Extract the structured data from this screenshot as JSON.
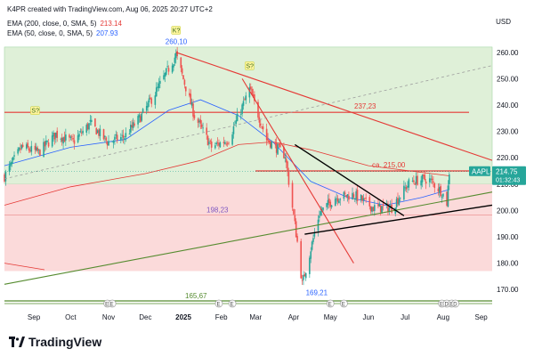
{
  "header": {
    "created_line": "K4PR created with TradingView.com, Aug 06, 2025 20:27 UTC+2",
    "ema200": {
      "label": "EMA (200, close, 0, SMA, 5)",
      "value": "213.14",
      "color": "#e53935"
    },
    "ema50": {
      "label": "EMA (50, close, 0, SMA, 5)",
      "value": "207.93",
      "color": "#2962ff"
    }
  },
  "currency": "USD",
  "brand": "TradingView",
  "colors": {
    "up": "#26a69a",
    "down": "#ef5350",
    "green_zone": "#dff0d8",
    "red_zone": "#fbdada",
    "trend_red": "#e53935",
    "trend_green": "#558b2f",
    "trend_black": "#000000",
    "ema200": "#e53935",
    "ema50": "#2962ff",
    "price_tag": "#26a69a"
  },
  "chart_data": {
    "type": "candlestick",
    "symbol": "AAPL",
    "last_price": "214.75",
    "countdown": "01:32:43",
    "ylim": [
      165,
      265
    ],
    "y_ticks": [
      "260.00",
      "250.00",
      "240.00",
      "230.00",
      "220.00",
      "210.00",
      "200.00",
      "190.00",
      "180.00",
      "170.00"
    ],
    "x_ticks": [
      "Sep",
      "Oct",
      "Nov",
      "Dec",
      "2025",
      "Feb",
      "Mar",
      "Apr",
      "May",
      "Jun",
      "Jul",
      "Aug",
      "Sep"
    ],
    "x_range": [
      "2024-08-08",
      "2025-09-10"
    ],
    "zones": [
      {
        "name": "green",
        "from": 210,
        "to": 262
      },
      {
        "name": "red",
        "from": 177,
        "to": 210
      }
    ],
    "levels": [
      {
        "value": 237.23,
        "label": "237,23",
        "color": "#e53935"
      },
      {
        "value": 215.0,
        "label": "ca. 215,00",
        "color": "#e53935"
      },
      {
        "value": 198.23,
        "label": "198,23",
        "color": "#7e57c2"
      },
      {
        "value": 165.67,
        "label": "165,67",
        "color": "#558b2f"
      }
    ],
    "annotations": [
      {
        "text": "260,10",
        "date": "2024-12-26",
        "value": 260.1
      },
      {
        "text": "169,21",
        "date": "2025-04-08",
        "value": 169.21
      },
      {
        "text": "K?",
        "date": "2024-12-26",
        "value": 260.1
      },
      {
        "text": "S?",
        "date": "2024-09-02",
        "value": 233
      },
      {
        "text": "S?",
        "date": "2025-02-24",
        "value": 250
      }
    ],
    "trendlines": [
      {
        "color": "#e53935",
        "from": [
          "2024-12-26",
          260
        ],
        "to": [
          "2025-09-10",
          219
        ]
      },
      {
        "color": "#e53935",
        "from": [
          "2025-02-18",
          250
        ],
        "to": [
          "2025-05-20",
          180
        ]
      },
      {
        "color": "#558b2f",
        "from": [
          "2024-08-08",
          172
        ],
        "to": [
          "2025-09-10",
          207
        ]
      },
      {
        "color": "#000000",
        "from": [
          "2025-04-02",
          225
        ],
        "to": [
          "2025-06-30",
          198
        ]
      },
      {
        "color": "#000000",
        "from": [
          "2025-04-10",
          191
        ],
        "to": [
          "2025-09-10",
          202
        ]
      },
      {
        "color": "#9e9e9e",
        "dashed": true,
        "from": [
          "2024-08-08",
          212
        ],
        "to": [
          "2025-09-10",
          255
        ]
      }
    ],
    "events": [
      "E",
      "E",
      "E",
      "E",
      "E",
      "E",
      "E",
      "D",
      "E",
      "D"
    ],
    "ema200": [
      [
        "2024-08-08",
        202
      ],
      [
        "2024-10-01",
        209
      ],
      [
        "2024-12-01",
        214
      ],
      [
        "2025-01-15",
        219
      ],
      [
        "2025-02-15",
        225
      ],
      [
        "2025-03-15",
        226
      ],
      [
        "2025-04-15",
        223
      ],
      [
        "2025-06-01",
        217
      ],
      [
        "2025-08-06",
        213.14
      ]
    ],
    "ema50": [
      [
        "2024-08-08",
        217
      ],
      [
        "2024-10-01",
        224
      ],
      [
        "2024-11-15",
        227
      ],
      [
        "2024-12-20",
        238
      ],
      [
        "2025-01-15",
        242
      ],
      [
        "2025-02-15",
        236
      ],
      [
        "2025-03-15",
        226
      ],
      [
        "2025-04-15",
        211
      ],
      [
        "2025-05-15",
        205
      ],
      [
        "2025-06-15",
        202
      ],
      [
        "2025-07-15",
        205
      ],
      [
        "2025-08-06",
        207.93
      ]
    ],
    "price_path": [
      [
        "2024-08-08",
        213
      ],
      [
        "2024-08-22",
        224
      ],
      [
        "2024-09-05",
        222
      ],
      [
        "2024-09-19",
        229
      ],
      [
        "2024-10-03",
        226
      ],
      [
        "2024-10-17",
        233
      ],
      [
        "2024-10-31",
        226
      ],
      [
        "2024-11-14",
        228
      ],
      [
        "2024-11-28",
        236
      ],
      [
        "2024-12-12",
        247
      ],
      [
        "2024-12-26",
        259
      ],
      [
        "2025-01-10",
        236
      ],
      [
        "2025-01-24",
        224
      ],
      [
        "2025-02-07",
        227
      ],
      [
        "2025-02-24",
        246
      ],
      [
        "2025-03-10",
        227
      ],
      [
        "2025-03-25",
        221
      ],
      [
        "2025-04-04",
        188
      ],
      [
        "2025-04-08",
        172
      ],
      [
        "2025-04-22",
        199
      ],
      [
        "2025-05-05",
        205
      ],
      [
        "2025-05-20",
        206
      ],
      [
        "2025-06-05",
        201
      ],
      [
        "2025-06-20",
        201
      ],
      [
        "2025-07-05",
        211
      ],
      [
        "2025-07-20",
        212
      ],
      [
        "2025-07-31",
        207
      ],
      [
        "2025-08-04",
        203
      ],
      [
        "2025-08-06",
        214.75
      ]
    ]
  }
}
